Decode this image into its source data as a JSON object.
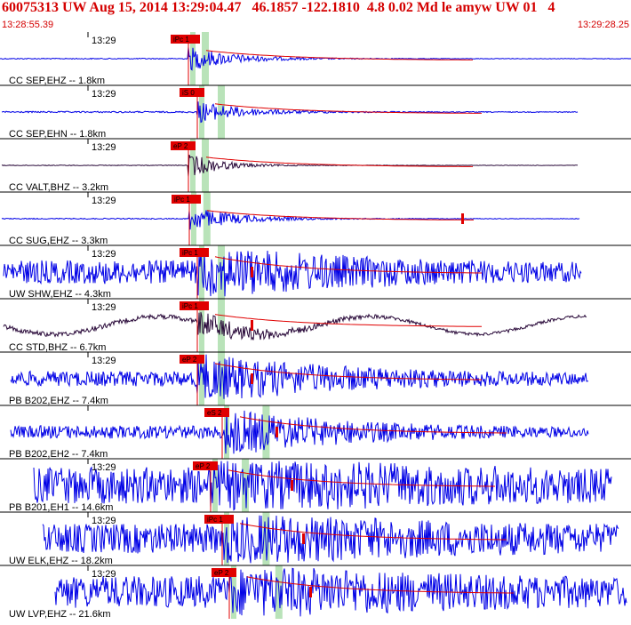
{
  "header": {
    "title": "60075313 UW Aug 15, 2014 13:29:04.47   46.1857 -122.1810  4.8 0.02 Md le amyw UW 01   4",
    "start_time": "13:28:55.39",
    "end_time": "13:29:28.25"
  },
  "colors": {
    "header_text": "#d40000",
    "trace_blue": "#0000e6",
    "trace_dark": "#2a0a3a",
    "pick_red": "#e00000",
    "pick_band": "#b9e3b9",
    "separator": "#000000"
  },
  "panels": [
    {
      "label": "CC SEP,EHZ -- 1.8km",
      "time": "13:29",
      "pick": "iPc 1",
      "color": "blue",
      "amp": "low",
      "noise": 0.04,
      "burst": 1.0,
      "start": 0.27,
      "end": 1.0,
      "decay": 0.1
    },
    {
      "label": "CC SEP,EHN -- 1.8km",
      "time": "13:29",
      "pick": "iS 0",
      "color": "blue",
      "amp": "low",
      "noise": 0.06,
      "burst": 0.9,
      "start": 0.0,
      "end": 0.92,
      "decay": 0.12
    },
    {
      "label": "CC VALT,BHZ -- 3.2km",
      "time": "13:29",
      "pick": "eP 2",
      "color": "dark",
      "amp": "low",
      "noise": 0.03,
      "burst": 1.0,
      "start": 0.0,
      "end": 0.75,
      "decay": 0.08
    },
    {
      "label": "CC SUG,EHZ -- 3.3km",
      "time": "13:29",
      "pick": "iPc 1",
      "color": "blue",
      "amp": "low",
      "noise": 0.04,
      "burst": 1.0,
      "start": 0.0,
      "end": 0.92,
      "decay": 0.12
    },
    {
      "label": "UW SHW,EHZ -- 4.3km",
      "time": "13:29",
      "pick": "iPc 1",
      "color": "blue",
      "amp": "high",
      "noise": 0.55,
      "burst": 1.0,
      "start": 0.0,
      "end": 0.92,
      "decay": 0.5
    },
    {
      "label": "CC STD,BHZ -- 6.7km",
      "time": "13:29",
      "pick": "iPc 1",
      "color": "dark",
      "amp": "wave",
      "noise": 0.15,
      "burst": 0.8,
      "start": 0.15,
      "end": 0.93,
      "decay": 0.15
    },
    {
      "label": "PB B202,EHZ -- 7.4km",
      "time": "13:29",
      "pick": "eP 2",
      "color": "blue",
      "amp": "high",
      "noise": 0.35,
      "burst": 1.0,
      "start": 0.0,
      "end": 0.93,
      "decay": 0.4
    },
    {
      "label": "PB B202,EH2 -- 7.4km",
      "time": "",
      "pick": "eS 2",
      "color": "blue",
      "amp": "high",
      "noise": 0.3,
      "burst": 1.0,
      "start": 0.0,
      "end": 0.93,
      "decay": 0.35
    },
    {
      "label": "PB B201,EH1 -- 14.6km",
      "time": "13:29",
      "pick": "eP 2",
      "color": "blue",
      "amp": "high",
      "noise": 0.85,
      "burst": 0.9,
      "start": 0.05,
      "end": 0.97,
      "decay": 0.9
    },
    {
      "label": "UW ELK,EHZ -- 18.2km",
      "time": "13:29",
      "pick": "iPc 1",
      "color": "blue",
      "amp": "high",
      "noise": 0.7,
      "burst": 0.9,
      "start": 0.06,
      "end": 0.99,
      "decay": 0.8
    },
    {
      "label": "UW LVP,EHZ -- 21.6km",
      "time": "13:29",
      "pick": "eP 2",
      "color": "blue",
      "amp": "high",
      "noise": 0.75,
      "burst": 0.9,
      "start": 0.08,
      "end": 1.0,
      "decay": 0.8
    }
  ]
}
